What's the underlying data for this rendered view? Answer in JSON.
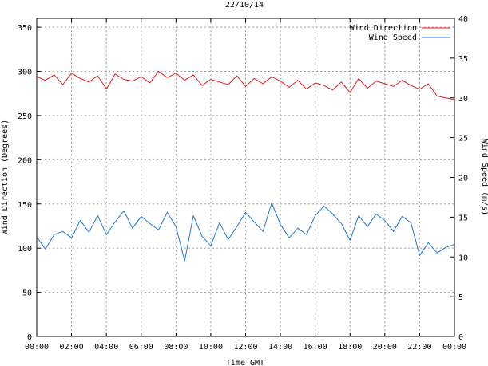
{
  "chart_data": {
    "type": "line",
    "title": "22/10/14",
    "xlabel": "Time GMT",
    "ylabel_left": "Wind Direction (Degrees)",
    "ylabel_right": "Wind Speed (m/s)",
    "x_ticks": [
      "00:00",
      "02:00",
      "04:00",
      "06:00",
      "08:00",
      "10:00",
      "12:00",
      "14:00",
      "16:00",
      "18:00",
      "20:00",
      "22:00",
      "00:00"
    ],
    "x_range_hours": [
      0,
      24
    ],
    "y_left_range": [
      0,
      360
    ],
    "y_left_ticks": [
      0,
      50,
      100,
      150,
      200,
      250,
      300,
      350
    ],
    "y_right_range": [
      0,
      40
    ],
    "y_right_ticks": [
      0,
      5,
      10,
      15,
      20,
      25,
      30,
      35,
      40
    ],
    "grid": true,
    "legend_position": "top-right",
    "series": [
      {
        "name": "Wind Direction",
        "axis": "left",
        "color": "#e41a1c",
        "x_hours": [
          0,
          0.5,
          1,
          1.5,
          2,
          2.5,
          3,
          3.5,
          4,
          4.5,
          5,
          5.5,
          6,
          6.5,
          7,
          7.5,
          8,
          8.5,
          9,
          9.5,
          10,
          10.5,
          11,
          11.5,
          12,
          12.5,
          13,
          13.5,
          14,
          14.5,
          15,
          15.5,
          16,
          16.5,
          17,
          17.5,
          18,
          18.5,
          19,
          19.5,
          20,
          20.5,
          21,
          21.5,
          22,
          22.5,
          23,
          23.5,
          24
        ],
        "values": [
          294,
          290,
          296,
          285,
          298,
          292,
          288,
          295,
          280,
          297,
          291,
          289,
          294,
          287,
          300,
          293,
          298,
          290,
          296,
          284,
          291,
          288,
          285,
          295,
          283,
          292,
          286,
          294,
          289,
          282,
          290,
          280,
          287,
          284,
          279,
          288,
          276,
          292,
          281,
          289,
          286,
          283,
          290,
          284,
          280,
          286,
          272,
          270,
          268
        ]
      },
      {
        "name": "Wind Speed",
        "axis": "right",
        "color": "#1f78d4",
        "x_hours": [
          0,
          0.5,
          1,
          1.5,
          2,
          2.5,
          3,
          3.5,
          4,
          4.5,
          5,
          5.5,
          6,
          6.5,
          7,
          7.5,
          8,
          8.5,
          9,
          9.5,
          10,
          10.5,
          11,
          11.5,
          12,
          12.5,
          13,
          13.5,
          14,
          14.5,
          15,
          15.5,
          16,
          16.5,
          17,
          17.5,
          18,
          18.5,
          19,
          19.5,
          20,
          20.5,
          21,
          21.5,
          22,
          22.5,
          23,
          23.5,
          24
        ],
        "values": [
          12.5,
          11,
          12.8,
          13.2,
          12.4,
          14.6,
          13.1,
          15.2,
          12.8,
          14.4,
          15.8,
          13.6,
          15.1,
          14.2,
          13.4,
          15.6,
          13.8,
          9.5,
          15.2,
          12.6,
          11.4,
          14.3,
          12.2,
          13.8,
          15.6,
          14.4,
          13.2,
          16.8,
          14.1,
          12.4,
          13.6,
          12.8,
          15.2,
          16.4,
          15.4,
          14.2,
          12.1,
          15.2,
          13.8,
          15.4,
          14.6,
          13.2,
          15.1,
          14.3,
          10.2,
          11.8,
          10.5,
          11.2,
          11.6
        ]
      }
    ]
  }
}
